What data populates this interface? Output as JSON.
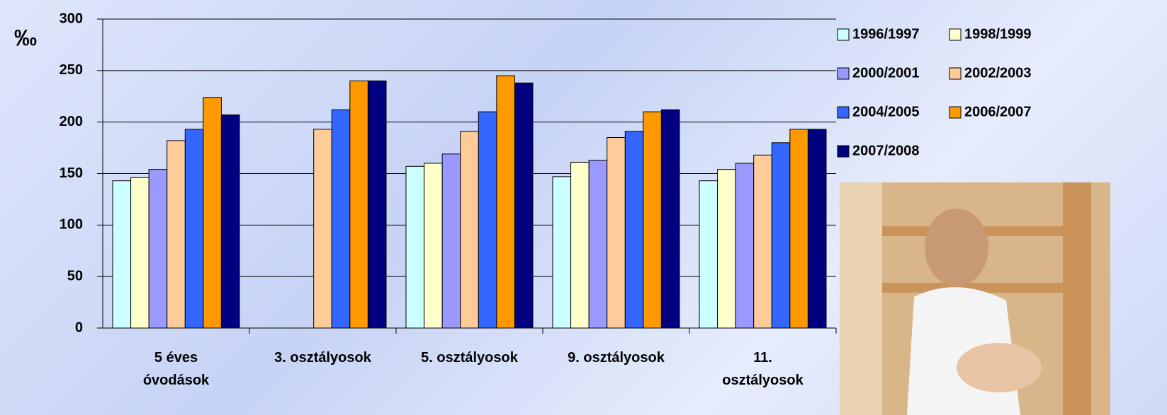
{
  "chart_data": {
    "type": "bar",
    "y_label": "‰",
    "categories": [
      "5 éves óvodások",
      "3. osztályosok",
      "5. osztályosok",
      "9. osztályosok",
      "11. osztályosok"
    ],
    "series": [
      {
        "name": "1996/1997",
        "color": "#ccffff",
        "values": [
          143,
          null,
          157,
          147,
          143
        ]
      },
      {
        "name": "1998/1999",
        "color": "#ffffcc",
        "values": [
          146,
          null,
          160,
          161,
          154
        ]
      },
      {
        "name": "2000/2001",
        "color": "#9999ff",
        "values": [
          154,
          null,
          169,
          163,
          160
        ]
      },
      {
        "name": "2002/2003",
        "color": "#ffcc99",
        "values": [
          182,
          193,
          191,
          185,
          168
        ]
      },
      {
        "name": "2004/2005",
        "color": "#3366ff",
        "values": [
          193,
          212,
          210,
          191,
          180
        ]
      },
      {
        "name": "2006/2007",
        "color": "#ff9900",
        "values": [
          224,
          240,
          245,
          210,
          193
        ]
      },
      {
        "name": "2007/2008",
        "color": "#000080",
        "values": [
          207,
          240,
          238,
          212,
          193
        ]
      }
    ],
    "ylim": [
      0,
      300
    ],
    "yticks": [
      0,
      50,
      100,
      150,
      200,
      250,
      300
    ],
    "grid": true
  }
}
